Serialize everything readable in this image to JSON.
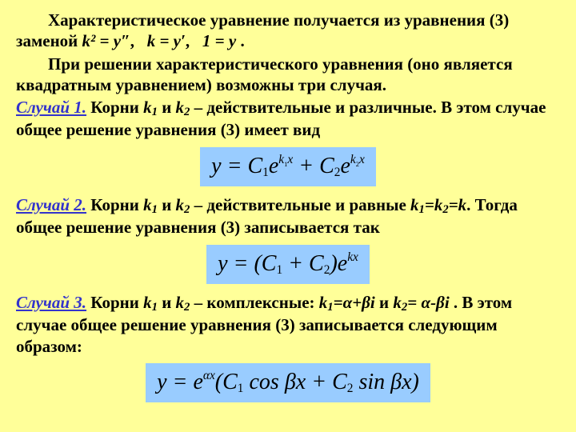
{
  "background_color": "#ffff99",
  "formula_bg": "#99ccff",
  "case_color": "#3333cc",
  "text_color": "#000000",
  "font_family": "Times New Roman",
  "base_fontsize_pt": 16,
  "formula_fontsize_pt": 21,
  "p1a": "Характеристическое уравнение получается из уравнения (3) заменой ",
  "sub1": "k² = y″",
  "sub2": "k = y′",
  "sub3": "1 = y",
  "p2": "При решении характеристического уравнения (оно является квадратным уравнением) возможны три случая.",
  "case1_label": "Случай 1.",
  "case1_text1": " Корни ",
  "case1_k1": "k",
  "case1_k1s": "1",
  "case1_and": " и ",
  "case1_k2": "k",
  "case1_k2s": "2",
  "case1_text2": " – действительные и различные. В этом случае общее решение уравнения (3) имеет вид",
  "formula1_html": "y = C<sub>1</sub>e<sup>k<sub>1</sub>x</sup> + C<sub>2</sub>e<sup>k<sub>2</sub>x</sup>",
  "case2_label": "Случай 2.",
  "case2_text1": " Корни ",
  "case2_text2": " – действительные и равные ",
  "case2_eq": "k",
  "case2_eq1s": "1",
  "case2_eqmid": "=k",
  "case2_eq2s": "2",
  "case2_eqend": "=k",
  "case2_text3": ". Тогда общее решение уравнения (3) записывается так",
  "formula2_html": "y = (C<sub>1</sub> + C<sub>2</sub>)e<sup>kx</sup>",
  "case3_label": "Случай 3.",
  "case3_text1": " Корни ",
  "case3_text2": " – комплексные: ",
  "case3_k1eq": "k",
  "case3_k1eqv": "=α+βi",
  "case3_k2eq": "k",
  "case3_k2eqv": "= α-βi",
  "case3_text3": " .  В этом случае общее решение уравнения (3) записывается следующим образом:",
  "formula3_html": "y = e<sup>αx</sup>(C<sub>1</sub> cos <span style='font-style:italic'>βx</span> + C<sub>2</sub> sin <span style='font-style:italic'>βx</span>)"
}
